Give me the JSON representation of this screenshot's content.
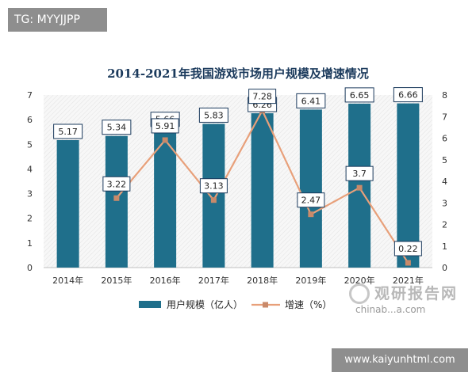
{
  "tag_top": "TG: MYYJJPP",
  "tag_bottom": "www.kaiyunhtml.com",
  "watermark": {
    "cn": "观研报告网",
    "en": "chinab...a.com"
  },
  "colors": {
    "bar": "#1f6f8b",
    "line": "#e8a07a",
    "marker": "#c98a6a",
    "text": "#1b3a5c"
  },
  "chart_data": {
    "type": "bar",
    "title": "2014-2021年我国游戏市场用户规模及增速情况",
    "categories": [
      "2014年",
      "2015年",
      "2016年",
      "2017年",
      "2018年",
      "2019年",
      "2020年",
      "2021年"
    ],
    "series": [
      {
        "name": "用户规模（亿人）",
        "type": "bar",
        "axis": "left",
        "values": [
          5.17,
          5.34,
          5.66,
          5.83,
          6.26,
          6.41,
          6.65,
          6.66
        ]
      },
      {
        "name": "增速（%）",
        "type": "line",
        "axis": "right",
        "values": [
          null,
          3.22,
          5.91,
          3.13,
          7.28,
          2.47,
          3.7,
          0.22
        ]
      }
    ],
    "ylim_left": [
      0,
      7
    ],
    "yticks_left": [
      0,
      1,
      2,
      3,
      4,
      5,
      6,
      7
    ],
    "ylim_right": [
      0,
      8
    ],
    "yticks_right": [
      0,
      1,
      2,
      3,
      4,
      5,
      6,
      7,
      8
    ],
    "legend_position": "bottom",
    "grid": false
  }
}
